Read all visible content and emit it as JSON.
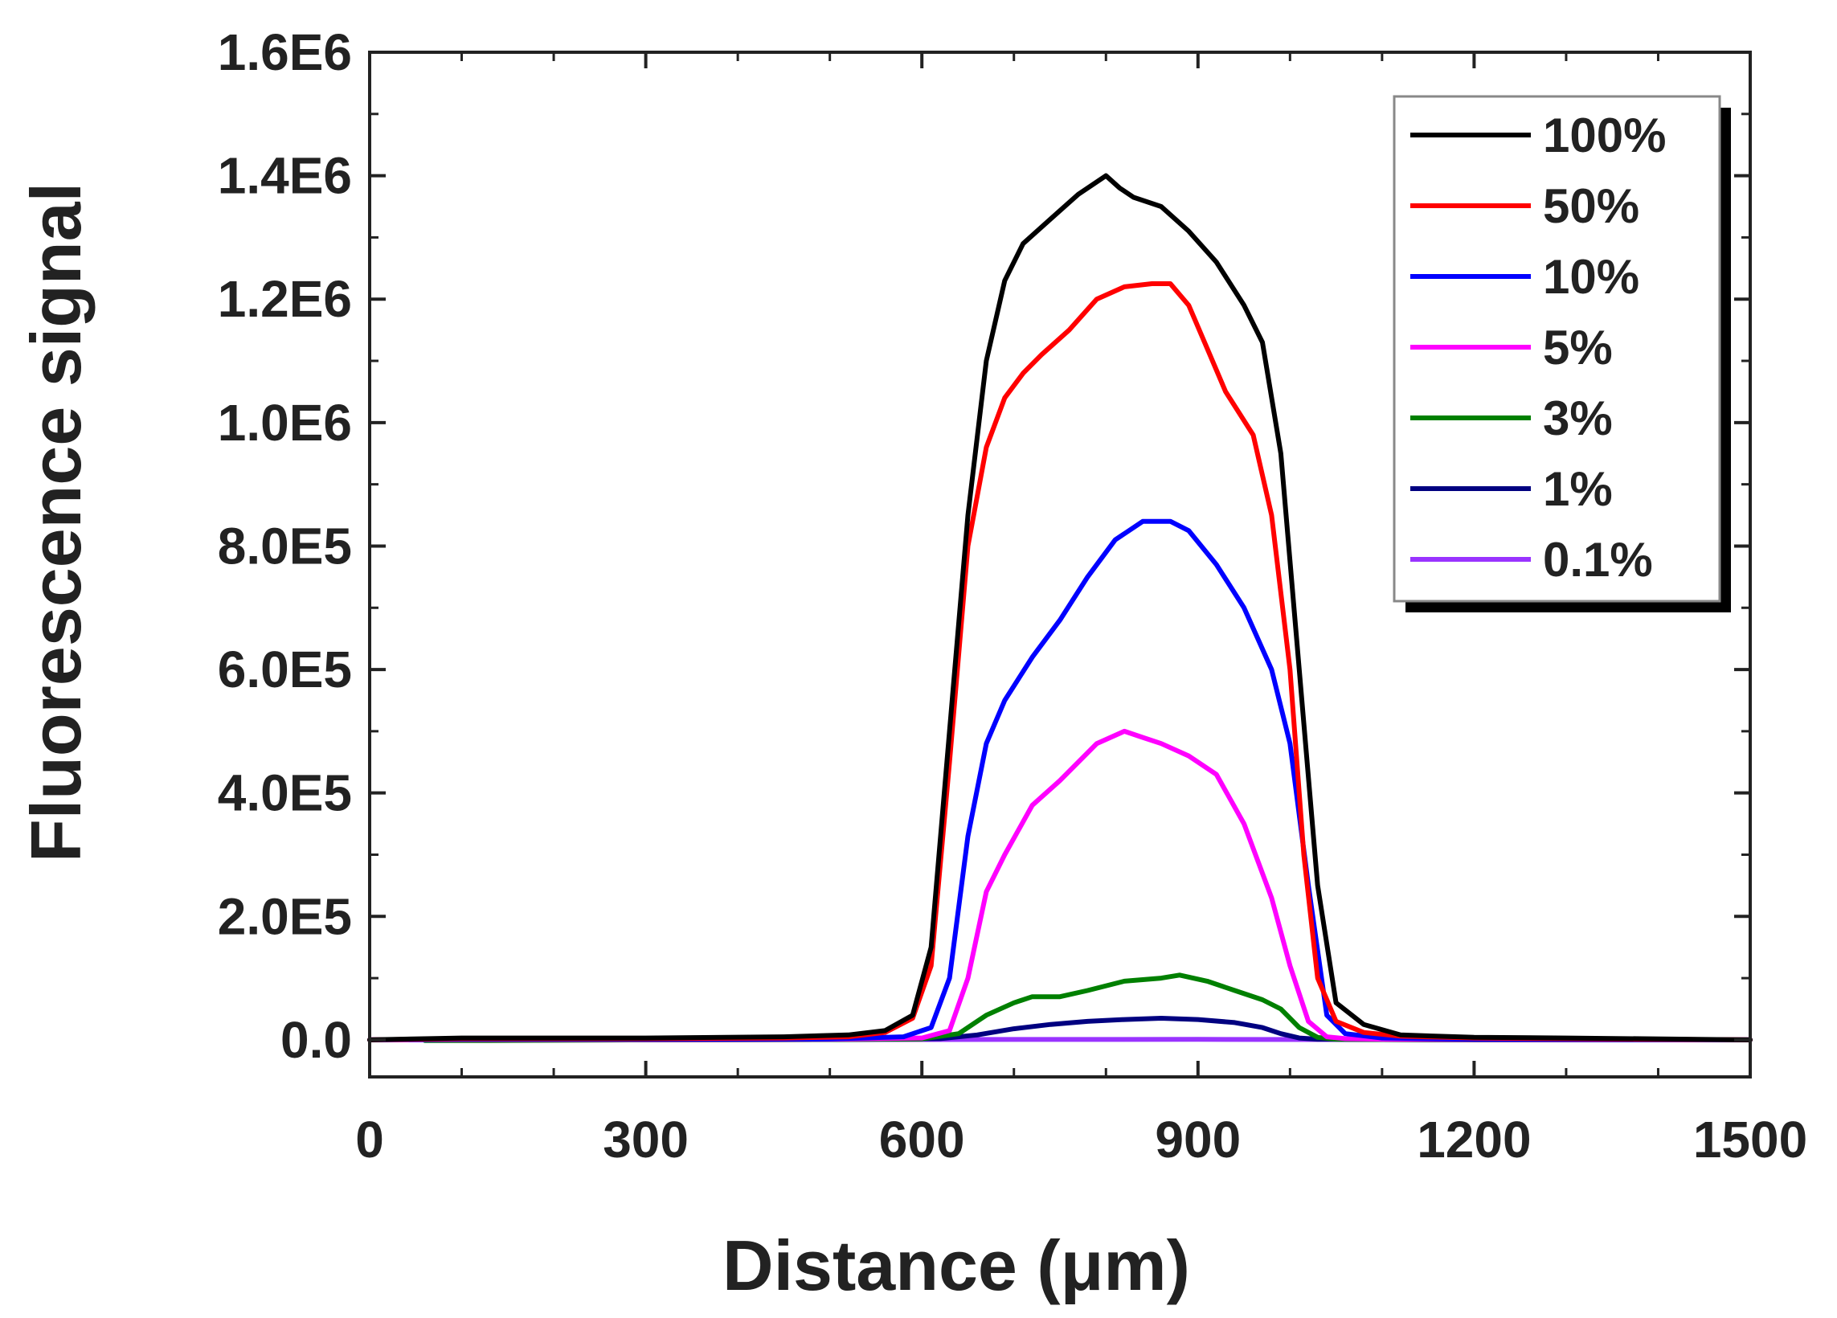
{
  "chart_data": {
    "type": "line",
    "title": "",
    "xlabel": "Distance (μm)",
    "ylabel": "Fluorescence signal",
    "xlim": [
      0,
      1500
    ],
    "ylim": [
      -60000,
      1600000
    ],
    "x_ticks": [
      0,
      300,
      600,
      900,
      1200,
      1500
    ],
    "x_tick_labels": [
      "0",
      "300",
      "600",
      "900",
      "1200",
      "1500"
    ],
    "y_ticks": [
      0,
      200000,
      400000,
      600000,
      800000,
      1000000,
      1200000,
      1400000,
      1600000
    ],
    "y_tick_labels": [
      "0.0",
      "2.0E5",
      "4.0E5",
      "6.0E5",
      "8.0E5",
      "1.0E6",
      "1.2E6",
      "1.4E6",
      "1.6E6"
    ],
    "grid": false,
    "legend_position": "top-right",
    "series": [
      {
        "name": "100%",
        "color": "#000000",
        "x": [
          0,
          100,
          300,
          450,
          520,
          560,
          590,
          610,
          630,
          650,
          670,
          690,
          710,
          740,
          770,
          800,
          815,
          830,
          860,
          890,
          920,
          950,
          970,
          990,
          1010,
          1030,
          1050,
          1080,
          1120,
          1200,
          1300,
          1500
        ],
        "y": [
          0,
          3000,
          3000,
          5000,
          8000,
          15000,
          40000,
          150000,
          500000,
          850000,
          1100000,
          1230000,
          1290000,
          1330000,
          1370000,
          1400000,
          1380000,
          1365000,
          1350000,
          1310000,
          1260000,
          1190000,
          1130000,
          950000,
          600000,
          250000,
          60000,
          25000,
          8000,
          4000,
          3000,
          0
        ]
      },
      {
        "name": "50%",
        "color": "#ff0000",
        "x": [
          0,
          100,
          300,
          450,
          520,
          560,
          590,
          610,
          630,
          650,
          670,
          690,
          710,
          730,
          760,
          790,
          820,
          850,
          870,
          890,
          910,
          930,
          960,
          980,
          1000,
          1015,
          1030,
          1050,
          1080,
          1120,
          1200,
          1300,
          1500
        ],
        "y": [
          0,
          2000,
          2000,
          3000,
          5000,
          12000,
          35000,
          120000,
          450000,
          800000,
          960000,
          1040000,
          1080000,
          1110000,
          1150000,
          1200000,
          1220000,
          1225000,
          1225000,
          1190000,
          1120000,
          1050000,
          980000,
          850000,
          600000,
          300000,
          100000,
          30000,
          12000,
          6000,
          3000,
          2000,
          0
        ]
      },
      {
        "name": "10%",
        "color": "#0000ff",
        "x": [
          0,
          100,
          300,
          500,
          580,
          610,
          630,
          650,
          670,
          690,
          720,
          750,
          780,
          810,
          840,
          870,
          890,
          920,
          950,
          980,
          1000,
          1020,
          1040,
          1060,
          1100,
          1200,
          1500
        ],
        "y": [
          0,
          1000,
          1000,
          1500,
          5000,
          20000,
          100000,
          330000,
          480000,
          550000,
          620000,
          680000,
          750000,
          810000,
          840000,
          840000,
          825000,
          770000,
          700000,
          600000,
          480000,
          250000,
          40000,
          10000,
          3000,
          1000,
          0
        ]
      },
      {
        "name": "5%",
        "color": "#ff00ff",
        "x": [
          0,
          100,
          300,
          500,
          600,
          630,
          650,
          670,
          690,
          720,
          750,
          790,
          820,
          840,
          860,
          890,
          920,
          950,
          980,
          1000,
          1020,
          1040,
          1060,
          1100,
          1200,
          1500
        ],
        "y": [
          0,
          500,
          500,
          1000,
          3000,
          15000,
          100000,
          240000,
          300000,
          380000,
          420000,
          480000,
          500000,
          490000,
          480000,
          460000,
          430000,
          350000,
          230000,
          120000,
          30000,
          5000,
          2000,
          1000,
          500,
          0
        ]
      },
      {
        "name": "3%",
        "color": "#008000",
        "x": [
          60,
          130,
          300,
          500,
          600,
          640,
          670,
          700,
          720,
          750,
          780,
          820,
          860,
          880,
          910,
          940,
          970,
          990,
          1010,
          1030,
          1050,
          1100,
          1200,
          1500
        ],
        "y": [
          -1000,
          -1000,
          0,
          500,
          1500,
          10000,
          40000,
          60000,
          70000,
          70000,
          80000,
          95000,
          100000,
          105000,
          95000,
          80000,
          65000,
          50000,
          20000,
          4000,
          1000,
          500,
          0,
          0
        ]
      },
      {
        "name": "1%",
        "color": "#000080",
        "x": [
          130,
          300,
          500,
          620,
          660,
          700,
          740,
          780,
          820,
          860,
          900,
          940,
          970,
          990,
          1010,
          1030,
          1100,
          1200,
          1500
        ],
        "y": [
          0,
          0,
          500,
          2000,
          8000,
          18000,
          25000,
          30000,
          33000,
          35000,
          33000,
          28000,
          20000,
          10000,
          3000,
          1000,
          500,
          0,
          0
        ]
      },
      {
        "name": "0.1%",
        "color": "#9933ff",
        "x": [
          0,
          300,
          600,
          900,
          1200,
          1500
        ],
        "y": [
          0,
          0,
          500,
          800,
          200,
          0
        ]
      }
    ]
  }
}
